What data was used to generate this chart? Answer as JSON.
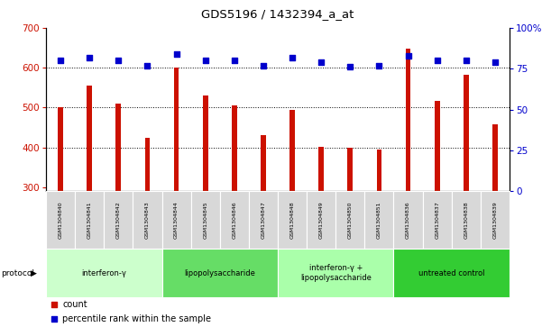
{
  "title": "GDS5196 / 1432394_a_at",
  "samples": [
    "GSM1304840",
    "GSM1304841",
    "GSM1304842",
    "GSM1304843",
    "GSM1304844",
    "GSM1304845",
    "GSM1304846",
    "GSM1304847",
    "GSM1304848",
    "GSM1304849",
    "GSM1304850",
    "GSM1304851",
    "GSM1304836",
    "GSM1304837",
    "GSM1304838",
    "GSM1304839"
  ],
  "counts": [
    500,
    555,
    510,
    425,
    600,
    530,
    505,
    430,
    495,
    402,
    400,
    395,
    648,
    517,
    583,
    458
  ],
  "percentiles": [
    80,
    82,
    80,
    77,
    84,
    80,
    80,
    77,
    82,
    79,
    76,
    77,
    83,
    80,
    80,
    79
  ],
  "ylim_left": [
    290,
    700
  ],
  "ylim_right": [
    0,
    100
  ],
  "yticks_left": [
    300,
    400,
    500,
    600,
    700
  ],
  "yticks_right": [
    0,
    25,
    50,
    75,
    100
  ],
  "bar_color": "#cc1100",
  "dot_color": "#0000cc",
  "protocol_groups": [
    {
      "label": "interferon-γ",
      "start": 0,
      "end": 4,
      "color": "#ccffcc"
    },
    {
      "label": "lipopolysaccharide",
      "start": 4,
      "end": 8,
      "color": "#66dd66"
    },
    {
      "label": "interferon-γ +\nlipopolysaccharide",
      "start": 8,
      "end": 12,
      "color": "#aaffaa"
    },
    {
      "label": "untreated control",
      "start": 12,
      "end": 16,
      "color": "#33cc33"
    }
  ],
  "legend_count_label": "count",
  "legend_pct_label": "percentile rank within the sample"
}
